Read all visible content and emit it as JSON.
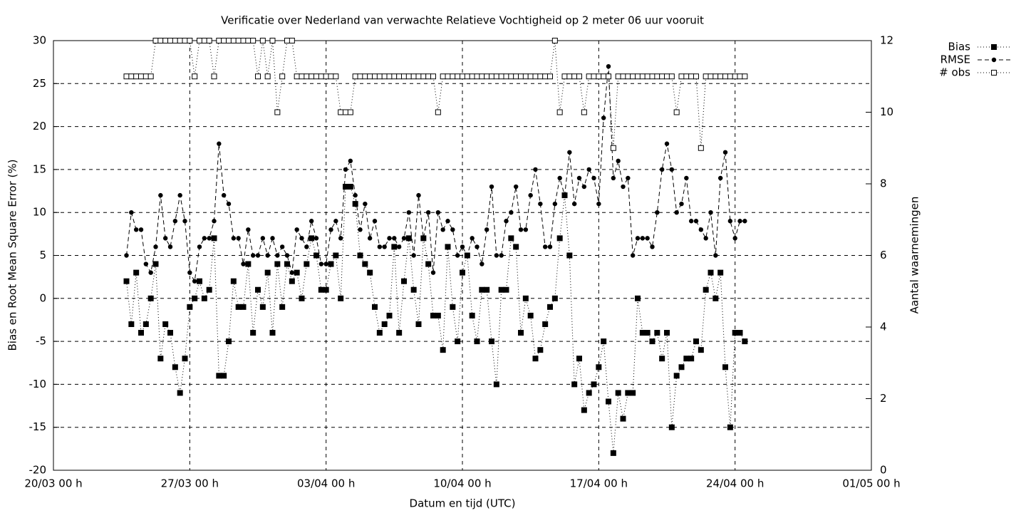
{
  "chart_data": {
    "type": "line",
    "title": "Verificatie over Nederland van verwachte Relatieve Vochtigheid op 2 meter 06 uur vooruit",
    "xlabel": "Datum en tijd (UTC)",
    "ylabel": "Bias en Root Mean Square Error (%)",
    "y2label": "Aantal waarnemingen",
    "x": [
      "23/03 18 h",
      "24/03 00 h",
      "24/03 06 h",
      "24/03 12 h",
      "24/03 18 h",
      "25/03 00 h",
      "25/03 06 h",
      "25/03 12 h",
      "25/03 18 h",
      "26/03 00 h",
      "26/03 06 h",
      "26/03 12 h",
      "26/03 18 h",
      "27/03 00 h",
      "27/03 06 h",
      "27/03 12 h",
      "27/03 18 h",
      "28/03 00 h",
      "28/03 06 h",
      "28/03 12 h",
      "28/03 18 h",
      "29/03 00 h",
      "29/03 06 h",
      "29/03 12 h",
      "29/03 18 h",
      "30/03 00 h",
      "30/03 06 h",
      "30/03 12 h",
      "30/03 18 h",
      "31/03 00 h",
      "31/03 06 h",
      "31/03 12 h",
      "31/03 18 h",
      "01/04 00 h",
      "01/04 06 h",
      "01/04 12 h",
      "01/04 18 h",
      "02/04 00 h",
      "02/04 06 h",
      "02/04 12 h",
      "02/04 18 h",
      "03/04 00 h",
      "03/04 06 h",
      "03/04 12 h",
      "03/04 18 h",
      "04/04 00 h",
      "04/04 06 h",
      "04/04 12 h",
      "04/04 18 h",
      "05/04 00 h",
      "05/04 06 h",
      "05/04 12 h",
      "05/04 18 h",
      "06/04 00 h",
      "06/04 06 h",
      "06/04 12 h",
      "06/04 18 h",
      "07/04 00 h",
      "07/04 06 h",
      "07/04 12 h",
      "07/04 18 h",
      "08/04 00 h",
      "08/04 06 h",
      "08/04 12 h",
      "08/04 18 h",
      "09/04 00 h",
      "09/04 06 h",
      "09/04 12 h",
      "09/04 18 h",
      "10/04 00 h",
      "10/04 06 h",
      "10/04 12 h",
      "10/04 18 h",
      "11/04 00 h",
      "11/04 06 h",
      "11/04 12 h",
      "11/04 18 h",
      "12/04 00 h",
      "12/04 06 h",
      "12/04 12 h",
      "12/04 18 h",
      "13/04 00 h",
      "13/04 06 h",
      "13/04 12 h",
      "13/04 18 h",
      "14/04 00 h",
      "14/04 06 h",
      "14/04 12 h",
      "14/04 18 h",
      "15/04 00 h",
      "15/04 06 h",
      "15/04 12 h",
      "15/04 18 h",
      "16/04 00 h",
      "16/04 06 h",
      "16/04 12 h",
      "16/04 18 h",
      "17/04 00 h",
      "17/04 06 h",
      "17/04 12 h",
      "17/04 18 h",
      "18/04 00 h",
      "18/04 06 h",
      "18/04 12 h",
      "18/04 18 h",
      "19/04 00 h",
      "19/04 06 h",
      "19/04 12 h",
      "19/04 18 h",
      "20/04 00 h",
      "20/04 06 h",
      "20/04 12 h",
      "20/04 18 h",
      "21/04 00 h",
      "21/04 06 h",
      "21/04 12 h",
      "21/04 18 h",
      "22/04 00 h",
      "22/04 06 h",
      "22/04 12 h",
      "22/04 18 h",
      "23/04 00 h",
      "23/04 06 h",
      "23/04 12 h",
      "23/04 18 h",
      "24/04 00 h",
      "24/04 06 h",
      "24/04 12 h"
    ],
    "series": [
      {
        "name": "Bias",
        "color": "#000000",
        "marker": "filled-square",
        "dash": "dotted",
        "values": [
          2,
          -3,
          3,
          -4,
          -3,
          0,
          4,
          -7,
          -3,
          -4,
          -8,
          -11,
          -7,
          -1,
          0,
          2,
          0,
          1,
          7,
          -9,
          -9,
          -5,
          2,
          -1,
          -1,
          4,
          -4,
          1,
          -1,
          3,
          -4,
          4,
          -1,
          4,
          2,
          3,
          0,
          4,
          7,
          5,
          1,
          1,
          4,
          5,
          0,
          13,
          13,
          11,
          5,
          4,
          3,
          -1,
          -4,
          -3,
          -2,
          6,
          -4,
          2,
          7,
          1,
          -3,
          7,
          4,
          -2,
          -2,
          -6,
          6,
          -1,
          -5,
          3,
          5,
          -2,
          -5,
          1,
          1,
          -5,
          -10,
          1,
          1,
          7,
          6,
          -4,
          0,
          -2,
          -7,
          -6,
          -3,
          -1,
          0,
          7,
          12,
          5,
          -10,
          -7,
          -13,
          -11,
          -10,
          -8,
          -5,
          -12,
          -18,
          -11,
          -14,
          -11,
          -11,
          0,
          -4,
          -4,
          -5,
          -4,
          -7,
          -4,
          -15,
          -9,
          -8,
          -7,
          -7,
          -5,
          -6,
          1,
          3,
          0,
          3,
          -8,
          -15,
          -4,
          -4,
          -5
        ]
      },
      {
        "name": "RMSE",
        "color": "#000000",
        "marker": "filled-circle",
        "dash": "dashed",
        "values": [
          5,
          10,
          8,
          8,
          4,
          3,
          6,
          12,
          7,
          6,
          9,
          12,
          9,
          3,
          2,
          6,
          7,
          7,
          9,
          18,
          12,
          11,
          7,
          7,
          4,
          8,
          5,
          5,
          7,
          5,
          7,
          5,
          6,
          5,
          3,
          8,
          7,
          6,
          9,
          7,
          4,
          4,
          8,
          9,
          7,
          15,
          16,
          12,
          8,
          11,
          7,
          9,
          6,
          6,
          7,
          7,
          6,
          7,
          10,
          5,
          12,
          7,
          10,
          3,
          10,
          8,
          9,
          8,
          5,
          6,
          5,
          7,
          6,
          4,
          8,
          13,
          5,
          5,
          9,
          10,
          13,
          8,
          8,
          12,
          15,
          11,
          6,
          6,
          11,
          14,
          12,
          17,
          11,
          14,
          13,
          15,
          14,
          11,
          21,
          27,
          14,
          16,
          13,
          14,
          5,
          7,
          7,
          7,
          6,
          10,
          15,
          18,
          15,
          10,
          11,
          14,
          9,
          9,
          8,
          7,
          10,
          5,
          14,
          17,
          9,
          7,
          9,
          9
        ]
      },
      {
        "name": "# obs",
        "color": "#000000",
        "marker": "open-square",
        "dash": "dotted",
        "axis": "y2",
        "values": [
          11,
          11,
          11,
          11,
          11,
          11,
          12,
          12,
          12,
          12,
          12,
          12,
          12,
          12,
          11,
          12,
          12,
          12,
          11,
          12,
          12,
          12,
          12,
          12,
          12,
          12,
          12,
          11,
          12,
          11,
          12,
          10,
          11,
          12,
          12,
          11,
          11,
          11,
          11,
          11,
          11,
          11,
          11,
          11,
          10,
          10,
          10,
          11,
          11,
          11,
          11,
          11,
          11,
          11,
          11,
          11,
          11,
          11,
          11,
          11,
          11,
          11,
          11,
          11,
          10,
          11,
          11,
          11,
          11,
          11,
          11,
          11,
          11,
          11,
          11,
          11,
          11,
          11,
          11,
          11,
          11,
          11,
          11,
          11,
          11,
          11,
          11,
          11,
          12,
          10,
          11,
          11,
          11,
          11,
          10,
          11,
          11,
          11,
          11,
          11,
          9,
          11,
          11,
          11,
          11,
          11,
          11,
          11,
          11,
          11,
          11,
          11,
          11,
          10,
          11,
          11,
          11,
          11,
          9,
          11,
          11,
          11,
          11,
          11,
          11,
          11,
          11,
          11
        ]
      }
    ],
    "xlim": [
      "20/03 00 h",
      "01/05 00 h"
    ],
    "xticks": [
      "20/03 00 h",
      "27/03 00 h",
      "03/04 00 h",
      "10/04 00 h",
      "17/04 00 h",
      "24/04 00 h",
      "01/05 00 h"
    ],
    "ylim": [
      -20,
      30
    ],
    "yticks": [
      -20,
      -15,
      -10,
      -5,
      0,
      5,
      10,
      15,
      20,
      25,
      30
    ],
    "y2lim": [
      0,
      12
    ],
    "y2ticks": [
      0,
      2,
      4,
      6,
      8,
      10,
      12
    ],
    "grid": true,
    "legend": "top-right"
  }
}
